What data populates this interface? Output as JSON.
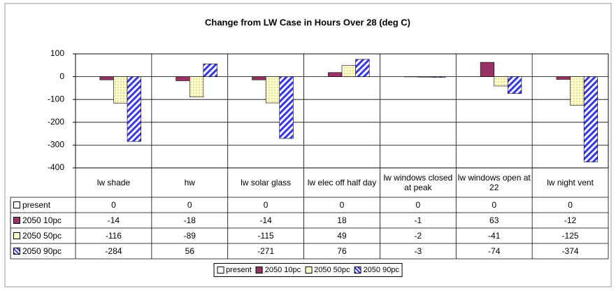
{
  "chart_data": {
    "type": "bar",
    "title": "Change from LW Case in Hours Over 28 (deg C)",
    "categories": [
      "lw shade",
      "hw",
      "lw solar glass",
      "lw elec off half day",
      "lw windows closed at peak",
      "lw windows open at 22",
      "lw night vent"
    ],
    "series": [
      {
        "name": "present",
        "color": "#ffffff",
        "values": [
          0,
          0,
          0,
          0,
          0,
          0,
          0
        ]
      },
      {
        "name": "2050 10pc",
        "color": "#993366",
        "values": [
          -14,
          -18,
          -14,
          18,
          -1,
          63,
          -12
        ]
      },
      {
        "name": "2050 50pc",
        "color": "#ffffcc",
        "values": [
          -116,
          -89,
          -115,
          49,
          -2,
          -41,
          -125
        ]
      },
      {
        "name": "2050 90pc",
        "color": "#3333ff",
        "values": [
          -284,
          56,
          -271,
          76,
          -3,
          -74,
          -374
        ]
      }
    ],
    "ylim": [
      -400,
      100
    ],
    "yticks": [
      -400,
      -300,
      -200,
      -100,
      0,
      100
    ],
    "grid": true,
    "legend": "bottom"
  }
}
